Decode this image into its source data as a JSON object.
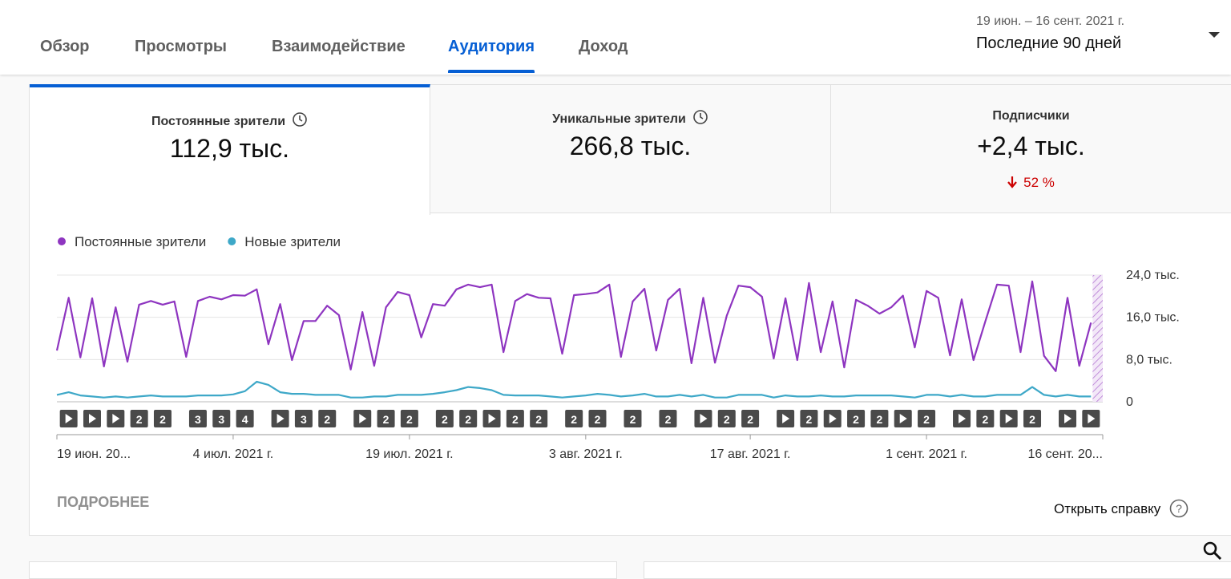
{
  "tabs": [
    "Обзор",
    "Просмотры",
    "Взаимодействие",
    "Аудитория",
    "Доход"
  ],
  "active_tab_index": 3,
  "date_range": {
    "dates": "19 июн. – 16 сент. 2021 г.",
    "label": "Последние 90 дней"
  },
  "metrics": [
    {
      "title": "Постоянные зрители",
      "value": "112,9 тыс."
    },
    {
      "title": "Уникальные зрители",
      "value": "266,8 тыс."
    },
    {
      "title": "Подписчики",
      "value": "+2,4 тыс.",
      "change": "52 %"
    }
  ],
  "chart_data": {
    "type": "line",
    "categories": [
      "19 июн. 20...",
      null,
      null,
      null,
      null,
      null,
      null,
      null,
      null,
      null,
      null,
      null,
      null,
      null,
      null,
      "4 июл. 2021 г.",
      null,
      null,
      null,
      null,
      null,
      null,
      null,
      null,
      null,
      null,
      null,
      null,
      null,
      null,
      "19 июл. 2021 г.",
      null,
      null,
      null,
      null,
      null,
      null,
      null,
      null,
      null,
      null,
      null,
      null,
      null,
      null,
      "3 авг. 2021 г.",
      null,
      null,
      null,
      null,
      null,
      null,
      null,
      null,
      null,
      null,
      null,
      null,
      null,
      "17 авг. 2021 г.",
      null,
      null,
      null,
      null,
      null,
      null,
      null,
      null,
      null,
      null,
      null,
      null,
      null,
      null,
      "1 сент. 2021 г.",
      null,
      null,
      null,
      null,
      null,
      null,
      null,
      null,
      null,
      null,
      null,
      null,
      null,
      null,
      "16 сент. 20..."
    ],
    "series": [
      {
        "name": "Постоянные зрители",
        "color": "#8e35c0",
        "values": [
          9700,
          19700,
          8400,
          19600,
          6700,
          17900,
          7600,
          18400,
          19100,
          18400,
          19000,
          8500,
          19100,
          19900,
          19400,
          20200,
          20100,
          21300,
          10900,
          18500,
          7900,
          15300,
          15300,
          18200,
          16400,
          6100,
          17000,
          6800,
          17900,
          20800,
          20200,
          12200,
          18500,
          18200,
          21300,
          22200,
          21700,
          22200,
          9400,
          19100,
          20400,
          19700,
          19600,
          9100,
          20200,
          20400,
          20700,
          22200,
          8500,
          19000,
          21400,
          9700,
          19300,
          21400,
          7300,
          19700,
          7400,
          16300,
          22000,
          21700,
          19900,
          8200,
          19600,
          7900,
          22500,
          9400,
          19000,
          6500,
          19300,
          18200,
          16700,
          17900,
          20100,
          10300,
          21000,
          19700,
          8800,
          19400,
          7900,
          15200,
          22200,
          22000,
          9400,
          22800,
          8700,
          5800,
          19700,
          6800,
          15000,
          null
        ]
      },
      {
        "name": "Новые зрители",
        "color": "#3ea8c8",
        "values": [
          1300,
          1800,
          1200,
          1000,
          800,
          1000,
          800,
          1000,
          1200,
          1000,
          1000,
          1000,
          1200,
          1200,
          1200,
          1400,
          2000,
          3800,
          3200,
          1800,
          1500,
          1500,
          1300,
          1300,
          1300,
          800,
          800,
          1000,
          1000,
          1300,
          1300,
          1300,
          1500,
          1800,
          2200,
          2800,
          2600,
          2200,
          1300,
          1200,
          1200,
          1200,
          1000,
          800,
          1000,
          1200,
          1500,
          1300,
          1000,
          1200,
          1500,
          1000,
          1000,
          1300,
          1000,
          1300,
          800,
          800,
          1300,
          1300,
          1300,
          800,
          1200,
          1000,
          1000,
          1200,
          1000,
          1000,
          1200,
          1200,
          1200,
          1200,
          1000,
          800,
          1300,
          1300,
          1000,
          1300,
          1000,
          1000,
          1300,
          1300,
          1300,
          2800,
          1300,
          1000,
          1300,
          1000,
          1000,
          null
        ]
      }
    ],
    "ylim": [
      0,
      24000
    ],
    "yticks": [
      0,
      {
        "value": 8000,
        "label": "8,0 тыс."
      },
      {
        "value": 16000,
        "label": "16,0 тыс."
      },
      {
        "value": 24000,
        "label": "24,0 тыс."
      }
    ],
    "grid": true,
    "video_counts": [
      null,
      1,
      null,
      1,
      null,
      1,
      null,
      2,
      null,
      2,
      null,
      null,
      3,
      null,
      3,
      null,
      4,
      null,
      null,
      1,
      null,
      3,
      null,
      2,
      null,
      null,
      1,
      null,
      2,
      null,
      2,
      null,
      null,
      2,
      null,
      2,
      null,
      1,
      null,
      2,
      null,
      2,
      null,
      null,
      2,
      null,
      2,
      null,
      null,
      2,
      null,
      null,
      2,
      null,
      null,
      1,
      null,
      2,
      null,
      2,
      null,
      null,
      1,
      null,
      2,
      null,
      1,
      null,
      2,
      null,
      2,
      null,
      1,
      null,
      2,
      null,
      null,
      1,
      null,
      2,
      null,
      1,
      null,
      2,
      null,
      null,
      1,
      null,
      1,
      null
    ]
  },
  "footer": {
    "more": "ПОДРОБНЕЕ",
    "help": "Открыть справку"
  }
}
